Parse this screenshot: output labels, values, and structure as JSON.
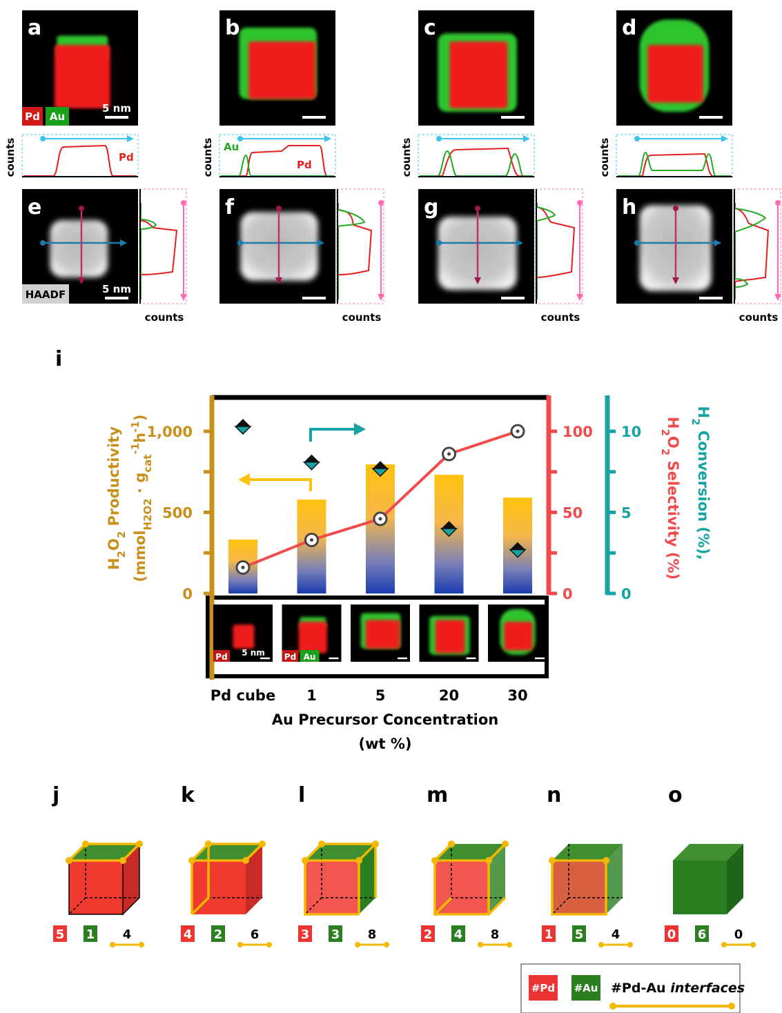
{
  "eds_panels": [
    {
      "letter": "a",
      "profile_labels": [
        "Pd"
      ]
    },
    {
      "letter": "b",
      "profile_labels": [
        "Au",
        "Pd"
      ]
    },
    {
      "letter": "c",
      "profile_labels": []
    },
    {
      "letter": "d",
      "profile_labels": []
    }
  ],
  "eds_legend": [
    "Pd",
    "Au"
  ],
  "scale_bar": "5 nm",
  "profile_axis": "counts",
  "haadf_panels": [
    "e",
    "f",
    "g",
    "h"
  ],
  "haadf_label": "HAADF",
  "chart_data": {
    "type": "bar",
    "panel": "i",
    "y_title": {
      "line1": [
        "H",
        "2",
        "O",
        "2",
        " Productivity"
      ],
      "line2": [
        "(mmol",
        "H2O2",
        " · g",
        "cat",
        "-1",
        "h",
        "-1",
        ")"
      ]
    },
    "y2_title": [
      "H",
      "2",
      "O",
      "2",
      " Selectivity (%)"
    ],
    "y3_title": [
      "H",
      "2",
      " Conversion (%),"
    ],
    "x_title": [
      "Au Precursor Concentration",
      "(wt %)"
    ],
    "categories": [
      "Pd cube",
      "1",
      "5",
      "20",
      "30"
    ],
    "series": [
      {
        "color": "#ffc20e",
        "values": [
          332,
          579,
          796,
          732,
          591
        ]
      },
      {
        "color": "#f24a4a",
        "values": [
          16,
          33,
          46,
          86,
          100
        ],
        "axis": "y2"
      },
      {
        "color": "#16a3a3",
        "values": [
          10.3,
          8.1,
          7.7,
          4.0,
          2.7
        ],
        "axis": "y3"
      }
    ],
    "ylim": [
      0,
      1200
    ],
    "yticks": [
      0,
      500,
      {
        "value": 1000,
        "label": "1,000"
      }
    ],
    "yminorticks": [
      250,
      750
    ],
    "y2lim": [
      0,
      120
    ],
    "y2ticks": [
      0,
      50,
      100
    ],
    "y2minorticks": [
      25,
      75
    ],
    "y3lim": [
      0,
      12
    ],
    "y3ticks": [
      0,
      5,
      10
    ],
    "y3minorticks": [
      2.5,
      7.5
    ],
    "ycolor": "#c8901a",
    "y2color": "#f24a4a",
    "y3color": "#16a3a3",
    "inset_labels": [
      "Pd",
      "Pd",
      "Au"
    ]
  },
  "models": [
    {
      "letter": "j",
      "pd": 5,
      "au": 1,
      "interfaces": 4
    },
    {
      "letter": "k",
      "pd": 4,
      "au": 2,
      "interfaces": 6
    },
    {
      "letter": "l",
      "pd": 3,
      "au": 3,
      "interfaces": 8
    },
    {
      "letter": "m",
      "pd": 2,
      "au": 4,
      "interfaces": 8
    },
    {
      "letter": "n",
      "pd": 1,
      "au": 5,
      "interfaces": 4
    },
    {
      "letter": "o",
      "pd": 0,
      "au": 6,
      "interfaces": 0
    }
  ],
  "legend": {
    "pd": "#Pd",
    "au": "#Au",
    "interfaces_prefix": "#Pd-Au ",
    "interfaces_italic": "interfaces"
  }
}
